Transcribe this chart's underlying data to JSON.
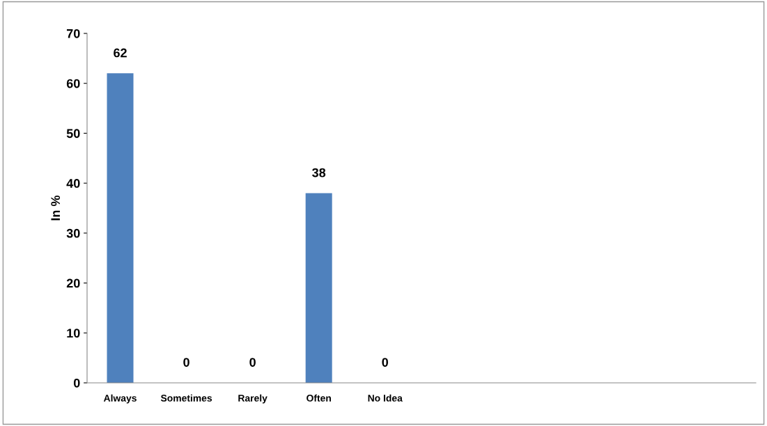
{
  "chart_data": {
    "type": "bar",
    "ylabel": "In %",
    "categories": [
      "Always",
      "Sometimes",
      "Rarely",
      "Often",
      "No Idea"
    ],
    "values": [
      62,
      0,
      0,
      38,
      0
    ],
    "color": "#4f81bd",
    "ylim": [
      0,
      70
    ],
    "yticks": [
      0,
      10,
      20,
      30,
      40,
      50,
      60,
      70
    ],
    "grid": false,
    "data_labels": true
  }
}
